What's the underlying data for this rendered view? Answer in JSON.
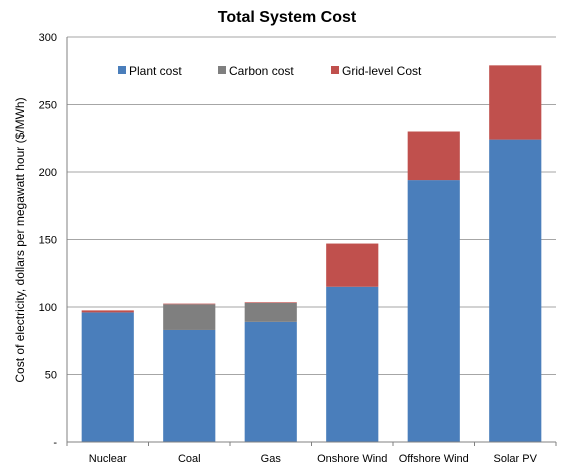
{
  "chart_data": {
    "type": "bar",
    "stacked": true,
    "title": "Total System Cost",
    "xlabel": "",
    "ylabel": "Cost of electricity, dollars per megawatt hour  ($/MWh)",
    "categories": [
      "Nuclear",
      "Coal",
      "Gas",
      "Onshore Wind",
      "Offshore Wind",
      "Solar PV"
    ],
    "series": [
      {
        "name": "Plant cost",
        "color": "#4a7ebb",
        "values": [
          96,
          83,
          89,
          115,
          194,
          224
        ]
      },
      {
        "name": "Carbon cost",
        "color": "#7f7f7f",
        "values": [
          0,
          19,
          14,
          0,
          0,
          0
        ]
      },
      {
        "name": "Grid-level Cost",
        "color": "#c0504d",
        "values": [
          1.5,
          0.5,
          0.5,
          32,
          36,
          55
        ]
      }
    ],
    "ylim": [
      0,
      300
    ],
    "yticks": [
      "-",
      "50",
      "100",
      "150",
      "200",
      "250",
      "300"
    ],
    "grid": true,
    "legend_position": "top"
  }
}
